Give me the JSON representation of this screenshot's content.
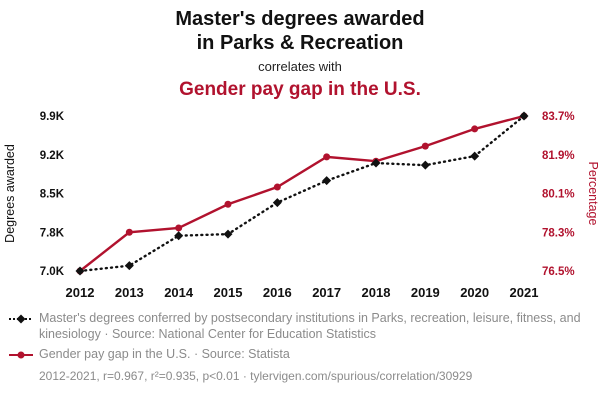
{
  "header": {
    "title_line1": "Master's degrees awarded",
    "title_line2": "in Parks & Recreation",
    "connector": "correlates with",
    "title_red": "Gender pay gap in the U.S."
  },
  "colors": {
    "accent_red": "#b1122e",
    "series_black": "#111111",
    "legend_gray": "#8b8b8b"
  },
  "chart_data": {
    "type": "line",
    "x": [
      2012,
      2013,
      2014,
      2015,
      2016,
      2017,
      2018,
      2019,
      2020,
      2021
    ],
    "series": [
      {
        "name": "Master's degrees awarded in Parks & Recreation",
        "axis": "left",
        "color": "#111111",
        "style": "dotted",
        "marker": "diamond",
        "values": [
          7000,
          7100,
          7660,
          7690,
          8280,
          8690,
          9020,
          8980,
          9150,
          9900
        ]
      },
      {
        "name": "Gender pay gap in the U.S.",
        "axis": "right",
        "color": "#b1122e",
        "style": "solid",
        "marker": "circle",
        "values": [
          76.5,
          78.3,
          78.5,
          79.6,
          80.4,
          81.8,
          81.6,
          82.3,
          83.1,
          83.7
        ]
      }
    ],
    "y_left": {
      "label": "Degrees awarded",
      "ticks": [
        "7.0K",
        "7.8K",
        "8.5K",
        "9.2K",
        "9.9K"
      ],
      "min": 7000,
      "max": 9900
    },
    "y_right": {
      "label": "Percentage",
      "ticks": [
        "76.5%",
        "78.3%",
        "80.1%",
        "81.9%",
        "83.7%"
      ],
      "min": 76.5,
      "max": 83.7
    },
    "grid": false,
    "legend_position": "bottom"
  },
  "footer": {
    "legend1": "Master's degrees conferred by postsecondary institutions in Parks, recreation, leisure, fitness, and kinesiology · Source: National Center for Education Statistics",
    "legend2": "Gender pay gap in the U.S. · Source: Statista",
    "citation": "2012-2021, r=0.967, r²=0.935, p<0.01 · tylervigen.com/spurious/correlation/30929"
  }
}
